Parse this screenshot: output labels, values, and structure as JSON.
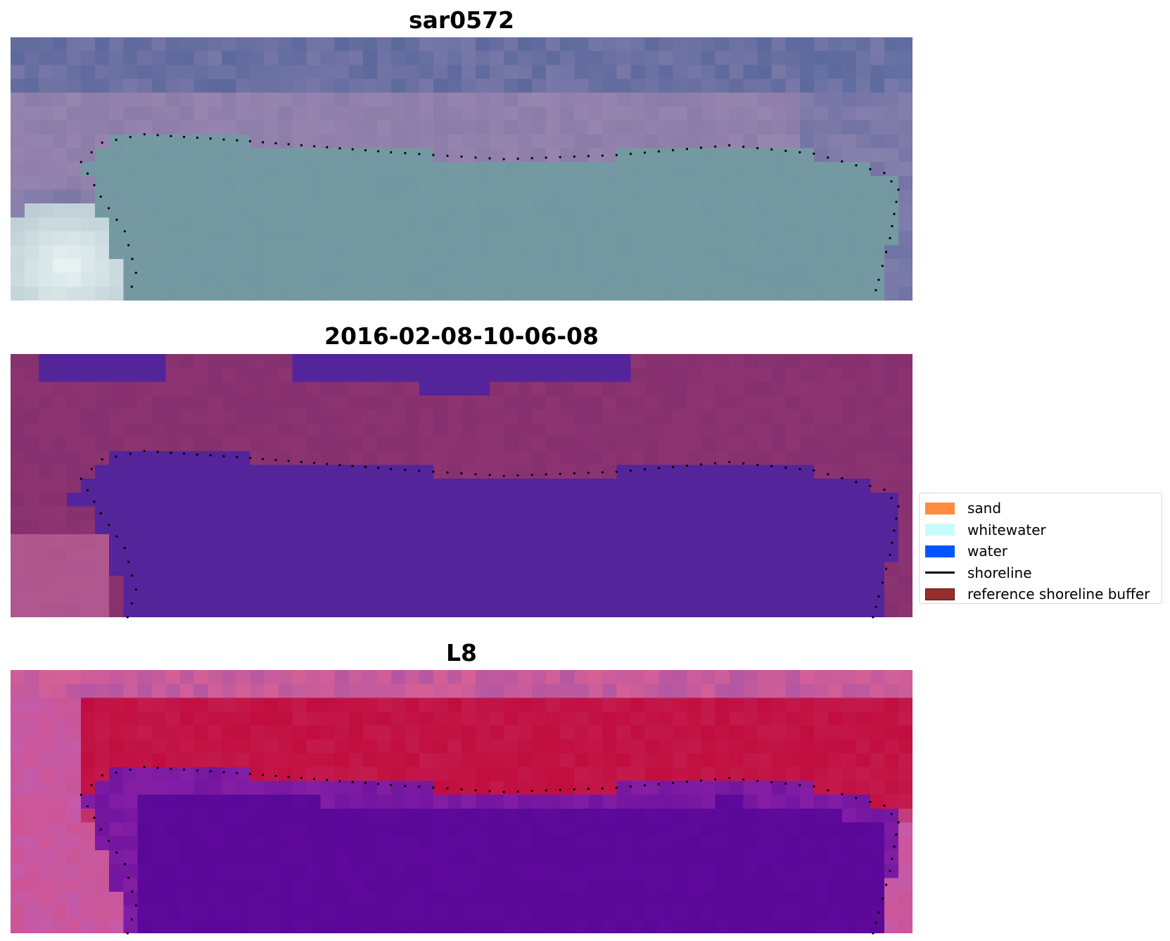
{
  "panels": [
    {
      "title": "sar0572",
      "image": "rgb-composite-image"
    },
    {
      "title": "2016-02-08-10-06-08",
      "image": "classified-image"
    },
    {
      "title": "L8",
      "image": "index-image"
    }
  ],
  "legend": {
    "entries": [
      {
        "label": "sand",
        "color": "#ff8c3c",
        "kind": "patch"
      },
      {
        "label": "whitewater",
        "color": "#c8fcfc",
        "kind": "patch"
      },
      {
        "label": "water",
        "color": "#0055ff",
        "kind": "patch"
      },
      {
        "label": "shoreline",
        "color": "#000000",
        "kind": "line"
      },
      {
        "label": "reference shoreline buffer",
        "color": "#962e2e",
        "kind": "patch"
      }
    ]
  },
  "colors": {
    "rgb_sky": "#7a78a4",
    "rgb_water": "#7498a2",
    "class_land": "#86306f",
    "class_water": "#54249a",
    "index_land": "#c41a4c",
    "index_water": "#5a0898"
  }
}
